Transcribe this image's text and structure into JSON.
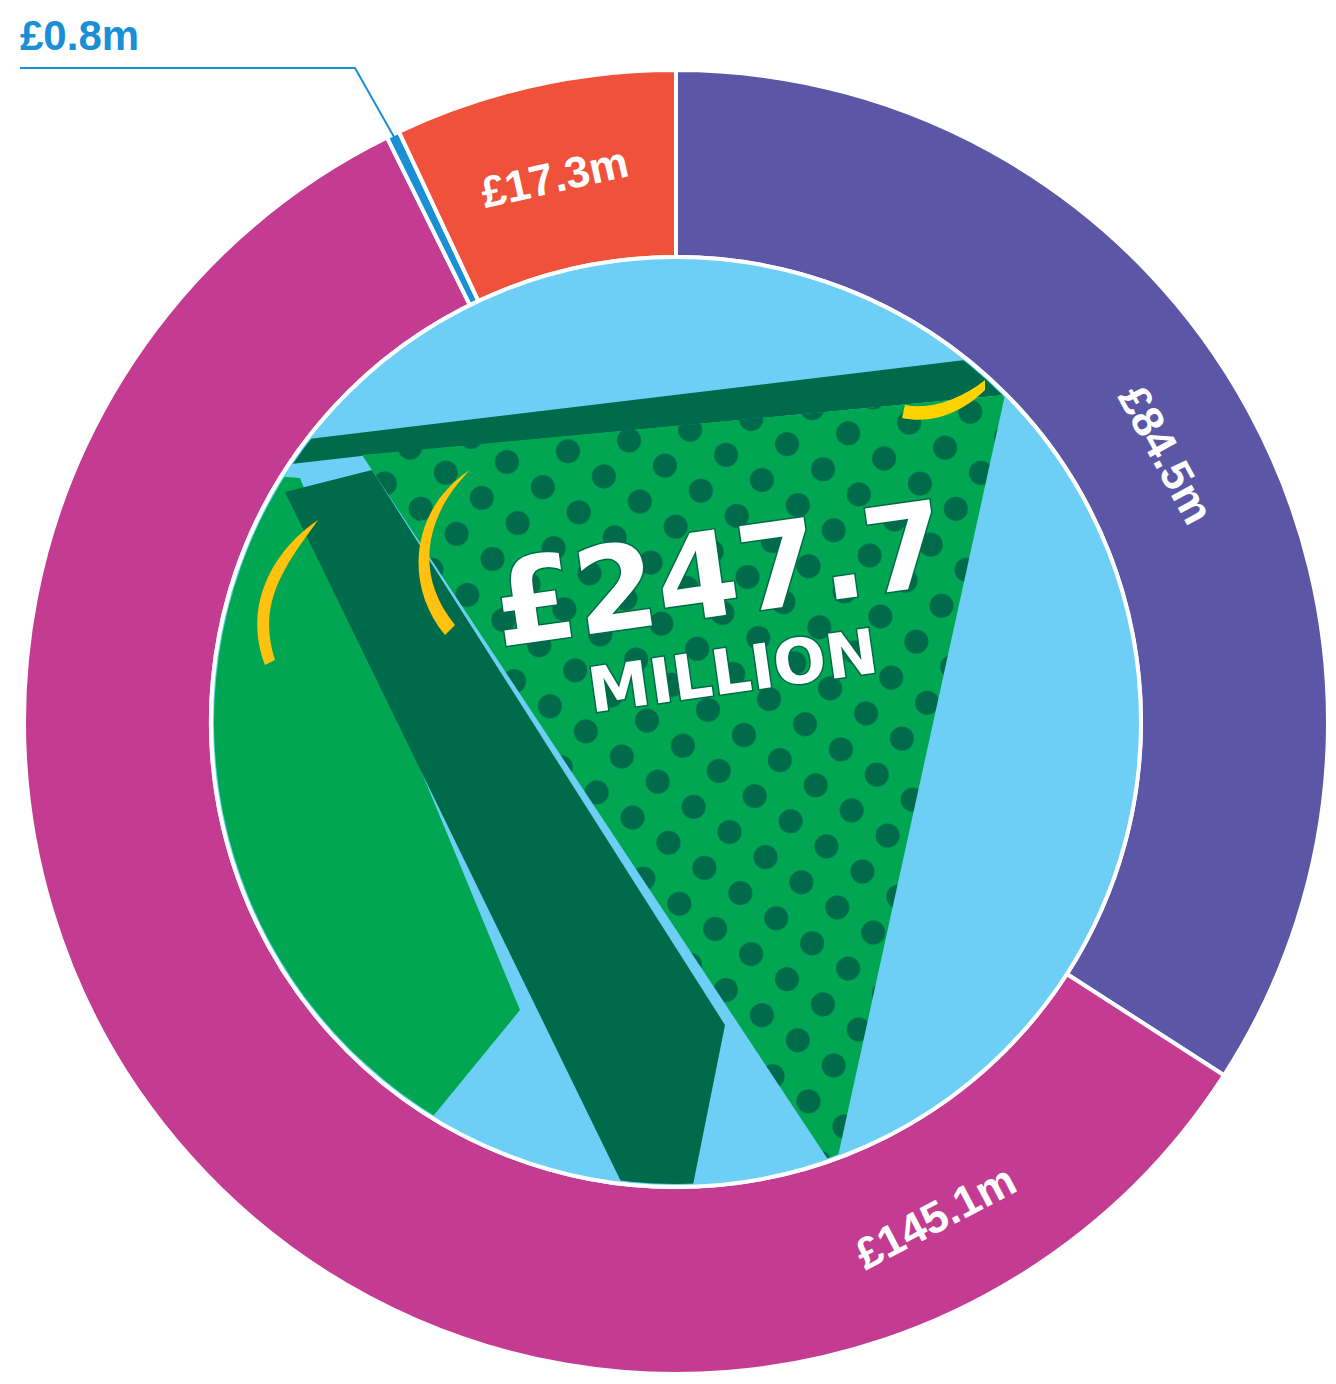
{
  "chart_data": {
    "type": "pie",
    "values": [
      84.5,
      145.1,
      0.8,
      17.3
    ],
    "value_labels": [
      "£84.5m",
      "£145.1m",
      "£0.8m",
      "£17.3m"
    ],
    "colors": [
      "#5b57a6",
      "#c43c91",
      "#1a8fd6",
      "#ef513a"
    ],
    "data_labels": true,
    "annotations": [
      "£247.7",
      "MILLION"
    ]
  }
}
